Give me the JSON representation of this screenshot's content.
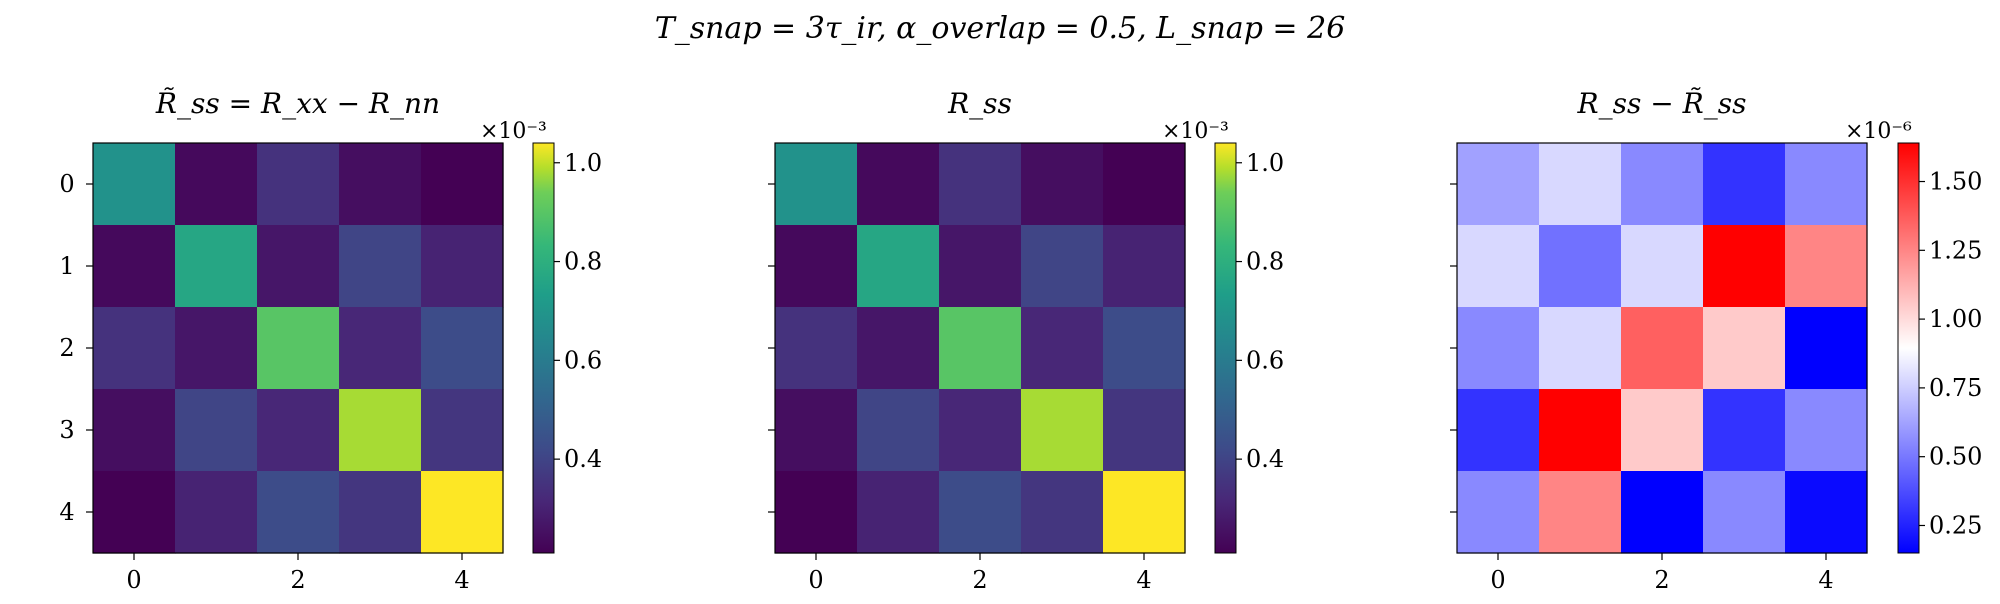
{
  "figure": {
    "suptitle": "T_snap = 3τ_ir,   α_overlap = 0.5,   L_snap = 26"
  },
  "chart_data": [
    {
      "type": "heatmap",
      "title": "R̃_ss = R_xx − R_nn",
      "colormap": "viridis",
      "x_ticks": [
        "0",
        "2",
        "4"
      ],
      "y_ticks": [
        "0",
        "1",
        "2",
        "3",
        "4"
      ],
      "colorbar": {
        "range": [
          0.21,
          1.04
        ],
        "ticks": [
          "0.4",
          "0.6",
          "0.8",
          "1.0"
        ],
        "tick_values": [
          0.4,
          0.6,
          0.8,
          1.0
        ],
        "multiplier": "×10⁻³"
      },
      "values": [
        [
          0.63,
          0.23,
          0.33,
          0.24,
          0.21
        ],
        [
          0.23,
          0.7,
          0.26,
          0.38,
          0.29
        ],
        [
          0.33,
          0.26,
          0.82,
          0.3,
          0.4
        ],
        [
          0.24,
          0.38,
          0.3,
          0.93,
          0.34
        ],
        [
          0.21,
          0.29,
          0.4,
          0.34,
          1.04
        ]
      ]
    },
    {
      "type": "heatmap",
      "title": "R_ss",
      "colormap": "viridis",
      "x_ticks": [
        "0",
        "2",
        "4"
      ],
      "y_ticks": [
        "0",
        "1",
        "2",
        "3",
        "4"
      ],
      "colorbar": {
        "range": [
          0.21,
          1.04
        ],
        "ticks": [
          "0.4",
          "0.6",
          "0.8",
          "1.0"
        ],
        "tick_values": [
          0.4,
          0.6,
          0.8,
          1.0
        ],
        "multiplier": "×10⁻³"
      },
      "values": [
        [
          0.63,
          0.23,
          0.33,
          0.24,
          0.21
        ],
        [
          0.23,
          0.7,
          0.26,
          0.38,
          0.29
        ],
        [
          0.33,
          0.26,
          0.82,
          0.3,
          0.4
        ],
        [
          0.24,
          0.38,
          0.3,
          0.93,
          0.34
        ],
        [
          0.21,
          0.29,
          0.4,
          0.34,
          1.04
        ]
      ]
    },
    {
      "type": "heatmap",
      "title": "R_ss − R̃_ss",
      "colormap": "bwr",
      "x_ticks": [
        "0",
        "2",
        "4"
      ],
      "y_ticks": [
        "0",
        "1",
        "2",
        "3",
        "4"
      ],
      "colorbar": {
        "range": [
          0.15,
          1.64
        ],
        "ticks": [
          "0.25",
          "0.50",
          "0.75",
          "1.00",
          "1.25",
          "1.50"
        ],
        "tick_values": [
          0.25,
          0.5,
          0.75,
          1.0,
          1.25,
          1.5
        ],
        "multiplier": "×10⁻⁶"
      },
      "values": [
        [
          0.62,
          0.78,
          0.55,
          0.3,
          0.55
        ],
        [
          0.78,
          0.48,
          0.78,
          1.64,
          1.25
        ],
        [
          0.55,
          0.78,
          1.36,
          1.05,
          0.15
        ],
        [
          0.3,
          1.64,
          1.05,
          0.3,
          0.55
        ],
        [
          0.55,
          1.25,
          0.15,
          0.55,
          0.18
        ]
      ]
    }
  ]
}
